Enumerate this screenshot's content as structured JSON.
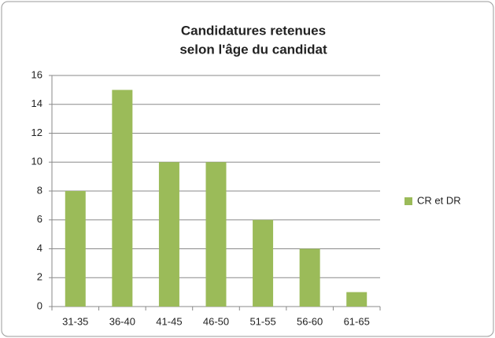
{
  "chart_data": {
    "type": "bar",
    "title": [
      "Candidatures retenues",
      "selon l'âge du candidat"
    ],
    "categories": [
      "31-35",
      "36-40",
      "41-45",
      "46-50",
      "51-55",
      "56-60",
      "61-65"
    ],
    "series": [
      {
        "name": "CR et DR",
        "color": "#9bbb59",
        "values": [
          8,
          15,
          10,
          10,
          6,
          4,
          1
        ]
      }
    ],
    "ylim": [
      0,
      16
    ],
    "yticks": [
      0,
      2,
      4,
      6,
      8,
      10,
      12,
      14,
      16
    ],
    "grid": true,
    "legend": "right"
  }
}
